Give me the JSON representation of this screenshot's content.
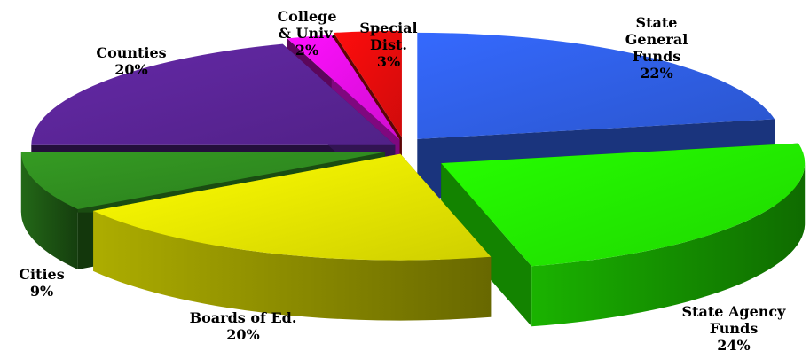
{
  "chart_data": {
    "type": "pie",
    "title": "",
    "slices": [
      {
        "label_lines": [
          "State",
          "General",
          "Funds"
        ],
        "percent_text": "22%",
        "value": 22,
        "color": "#2f5ee3"
      },
      {
        "label_lines": [
          "State Agency",
          "Funds"
        ],
        "percent_text": "24%",
        "value": 24,
        "color": "#22ee00"
      },
      {
        "label_lines": [
          "Boards of Ed."
        ],
        "percent_text": "20%",
        "value": 20,
        "color": "#e6e600"
      },
      {
        "label_lines": [
          "Cities"
        ],
        "percent_text": "9%",
        "value": 9,
        "color": "#2f8a1f"
      },
      {
        "label_lines": [
          "Counties"
        ],
        "percent_text": "20%",
        "value": 20,
        "color": "#5a2596"
      },
      {
        "label_lines": [
          "College",
          "& Univ."
        ],
        "percent_text": "2%",
        "value": 2,
        "color": "#e60ee6"
      },
      {
        "label_lines": [
          "Special",
          "Dist."
        ],
        "percent_text": "3%",
        "value": 3,
        "color": "#e60c0c"
      }
    ],
    "style": "3d-exploded",
    "legend": "none"
  }
}
